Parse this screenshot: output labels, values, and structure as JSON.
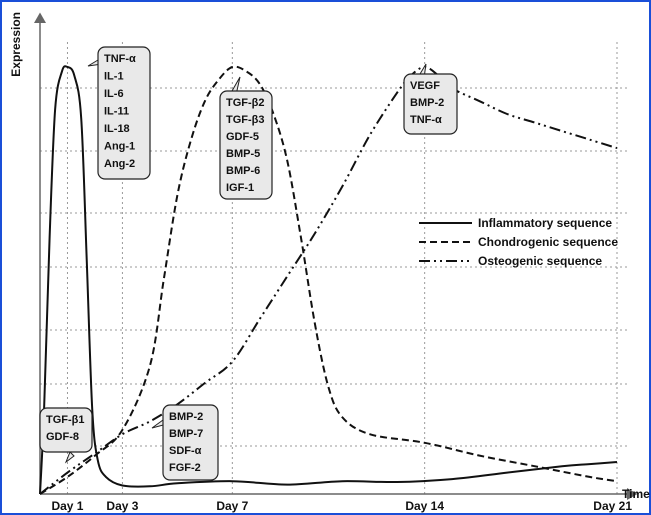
{
  "chart_data": {
    "type": "line",
    "xlabel": "Time",
    "ylabel": "Expression",
    "x_ticks": [
      {
        "day": 1,
        "label": "Day 1"
      },
      {
        "day": 3,
        "label": "Day 3"
      },
      {
        "day": 7,
        "label": "Day 7"
      },
      {
        "day": 14,
        "label": "Day 14"
      },
      {
        "day": 21,
        "label": "Day 21"
      }
    ],
    "xlim": [
      0,
      21
    ],
    "ylim": [
      0,
      100
    ],
    "grid": "dotted",
    "legend_position": "right",
    "series": [
      {
        "name": "Inflammatory sequence",
        "style": "solid",
        "points": [
          [
            0,
            0
          ],
          [
            0.15,
            20
          ],
          [
            0.35,
            60
          ],
          [
            0.55,
            90
          ],
          [
            0.8,
            99
          ],
          [
            1,
            100
          ],
          [
            1.25,
            98
          ],
          [
            1.5,
            88
          ],
          [
            1.7,
            55
          ],
          [
            1.9,
            20
          ],
          [
            2.1,
            8
          ],
          [
            2.4,
            4
          ],
          [
            3,
            2
          ],
          [
            4,
            1.8
          ],
          [
            5,
            2.5
          ],
          [
            7,
            3
          ],
          [
            9,
            2.2
          ],
          [
            11,
            3
          ],
          [
            13,
            2.8
          ],
          [
            15,
            3.5
          ],
          [
            17,
            5
          ],
          [
            19,
            6.5
          ],
          [
            20,
            7
          ],
          [
            21,
            7.5
          ]
        ]
      },
      {
        "name": "Chondrogenic sequence",
        "style": "dashed",
        "points": [
          [
            0,
            0
          ],
          [
            1,
            4
          ],
          [
            2,
            9
          ],
          [
            3,
            15
          ],
          [
            4,
            30
          ],
          [
            4.5,
            50
          ],
          [
            5,
            70
          ],
          [
            5.5,
            83
          ],
          [
            6,
            92
          ],
          [
            6.5,
            97
          ],
          [
            7,
            100
          ],
          [
            7.5,
            99
          ],
          [
            8,
            96
          ],
          [
            8.5,
            89
          ],
          [
            9,
            78
          ],
          [
            9.5,
            60
          ],
          [
            10,
            40
          ],
          [
            10.5,
            25
          ],
          [
            11,
            18
          ],
          [
            12,
            14
          ],
          [
            14,
            12
          ],
          [
            16,
            9
          ],
          [
            18,
            6.5
          ],
          [
            20,
            4
          ],
          [
            21,
            3
          ]
        ]
      },
      {
        "name": "Osteogenic sequence",
        "style": "dashdotdot",
        "points": [
          [
            0,
            0
          ],
          [
            1,
            5
          ],
          [
            2,
            9.5
          ],
          [
            3,
            14
          ],
          [
            4,
            17
          ],
          [
            5,
            21
          ],
          [
            6,
            26
          ],
          [
            7,
            31
          ],
          [
            8,
            41
          ],
          [
            9,
            51
          ],
          [
            10,
            61
          ],
          [
            11,
            72
          ],
          [
            12,
            84
          ],
          [
            13,
            94
          ],
          [
            13.5,
            98
          ],
          [
            14,
            100
          ],
          [
            14.5,
            98
          ],
          [
            15,
            95
          ],
          [
            16,
            92
          ],
          [
            17,
            89
          ],
          [
            18,
            87
          ],
          [
            19,
            85
          ],
          [
            20,
            83
          ],
          [
            21,
            81
          ]
        ]
      }
    ],
    "annotations": [
      {
        "lines": [
          "TNF-α",
          "IL-1",
          "IL-6",
          "IL-11",
          "IL-18",
          "Ang-1",
          "Ang-2"
        ],
        "anchor": [
          1,
          100
        ]
      },
      {
        "lines": [
          "TGF-β2",
          "TGF-β3",
          "GDF-5",
          "BMP-5",
          "BMP-6",
          "IGF-1"
        ],
        "anchor": [
          7,
          100
        ]
      },
      {
        "lines": [
          "VEGF",
          "BMP-2",
          "TNF-α"
        ],
        "anchor": [
          14,
          100
        ]
      },
      {
        "lines": [
          "TGF-β1",
          "GDF-8"
        ],
        "anchor": [
          2.6,
          6
        ]
      },
      {
        "lines": [
          "BMP-2",
          "BMP-7",
          "SDF-α",
          "FGF-2"
        ],
        "anchor": [
          3.1,
          13
        ]
      }
    ]
  }
}
